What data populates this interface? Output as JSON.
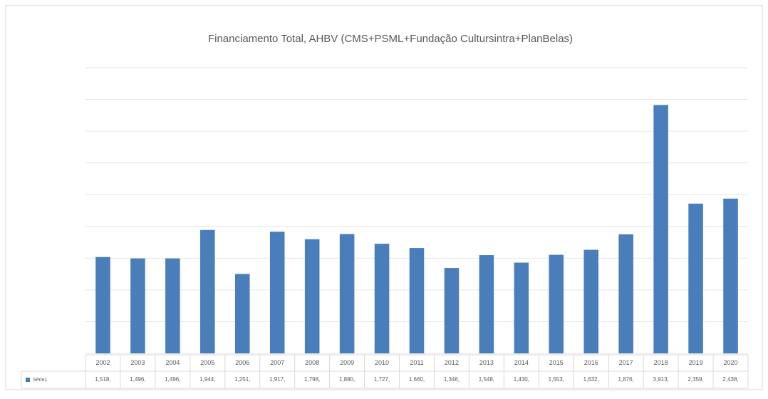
{
  "chart_data": {
    "type": "bar",
    "title": "Financiamento Total, AHBV (CMS+PSML+Fundação Cultursintra+PlanBelas)",
    "categories": [
      "2002",
      "2003",
      "2004",
      "2005",
      "2006",
      "2007",
      "2008",
      "2009",
      "2010",
      "2011",
      "2012",
      "2013",
      "2014",
      "2015",
      "2016",
      "2017",
      "2018",
      "2019",
      "2020"
    ],
    "series": [
      {
        "name": "Série1",
        "color": "#4a7ebb",
        "values": [
          1518,
          1496,
          1496,
          1944,
          1251,
          1917,
          1798,
          1880,
          1727,
          1660,
          1346,
          1548,
          1430,
          1553,
          1632,
          1876,
          3913,
          2359,
          2438
        ],
        "value_labels": [
          "1,518,",
          "1,496,",
          "1,496,",
          "1,944,",
          "1,251,",
          "1,917,",
          "1,798,",
          "1,880,",
          "1,727,",
          "1,660,",
          "1,346,",
          "1,548,",
          "1,430,",
          "1,553,",
          "1,632,",
          "1,876,",
          "3,913,",
          "2,359,",
          "2,438,"
        ]
      }
    ],
    "ylim": [
      0,
      4500
    ],
    "yticks": [
      0,
      500,
      1000,
      1500,
      2000,
      2500,
      3000,
      3500,
      4000,
      4500
    ],
    "grid": true
  }
}
